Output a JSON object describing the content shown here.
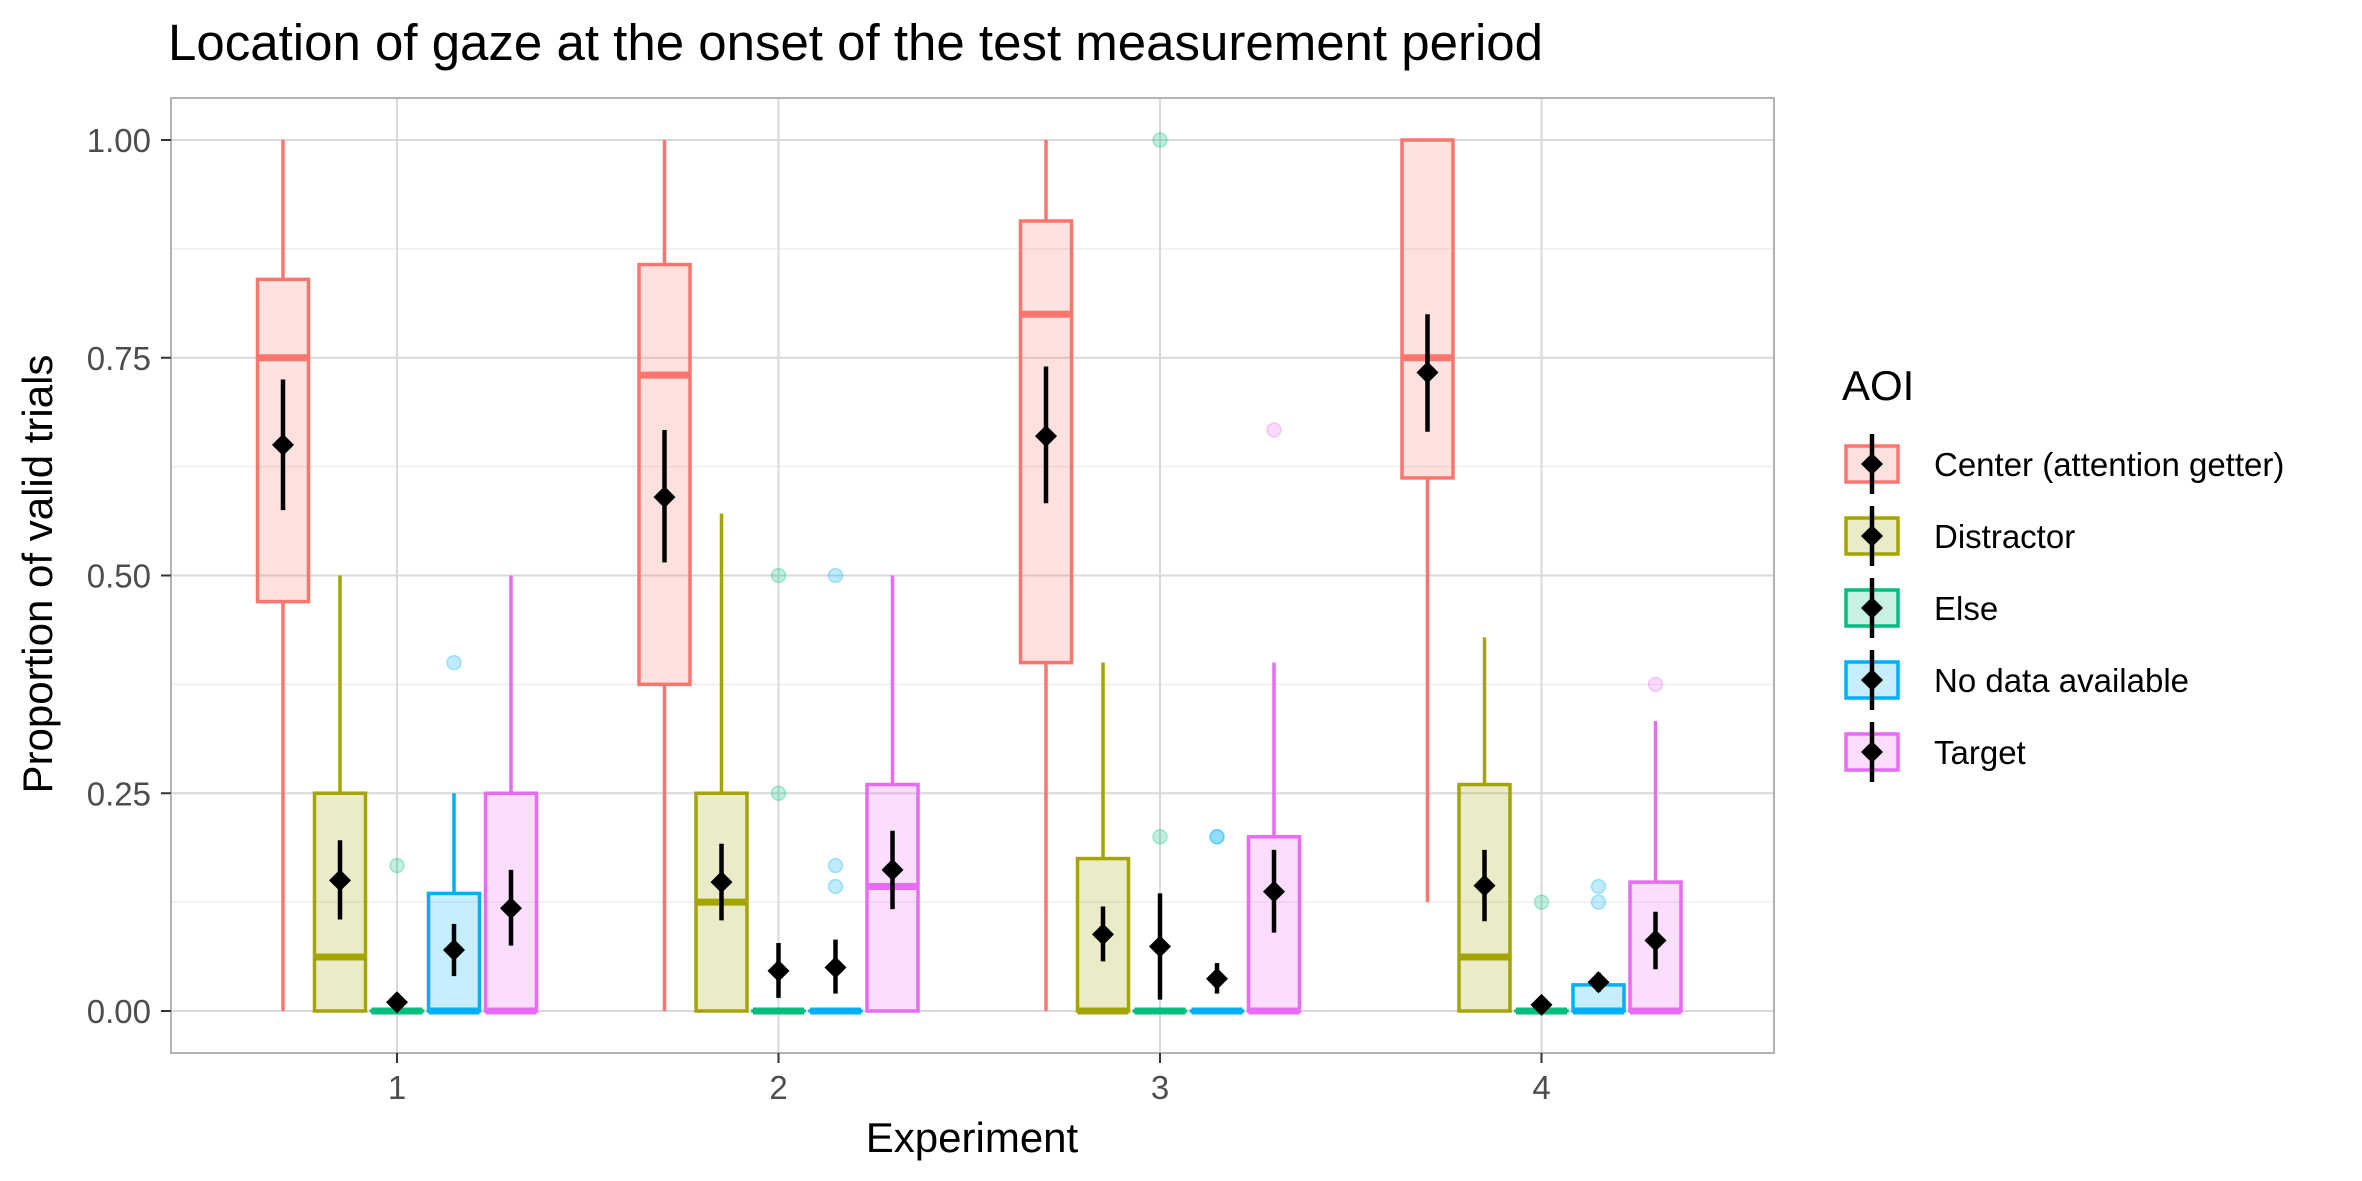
{
  "chart_data": {
    "type": "box",
    "title": "Location of gaze at the onset of the test measurement period",
    "xlabel": "Experiment",
    "ylabel": "Proportion of valid trials",
    "categories": [
      "1",
      "2",
      "3",
      "4"
    ],
    "y_ticks": [
      "0.00",
      "0.25",
      "0.50",
      "0.75",
      "1.00"
    ],
    "ylim": [
      -0.045,
      1.045
    ],
    "grid": true,
    "legend": {
      "title": "AOI",
      "position": "right"
    },
    "series": [
      {
        "name": "Center (attention getter)",
        "color": "#F8766D",
        "boxes": [
          {
            "whisker_low": 0.0,
            "q1": 0.47,
            "median": 0.75,
            "q3": 0.84,
            "whisker_high": 1.0,
            "mean": 0.65,
            "ci_low": 0.575,
            "ci_high": 0.725,
            "outliers": []
          },
          {
            "whisker_low": 0.0,
            "q1": 0.375,
            "median": 0.73,
            "q3": 0.857,
            "whisker_high": 1.0,
            "mean": 0.59,
            "ci_low": 0.515,
            "ci_high": 0.667,
            "outliers": []
          },
          {
            "whisker_low": 0.0,
            "q1": 0.4,
            "median": 0.8,
            "q3": 0.907,
            "whisker_high": 1.0,
            "mean": 0.66,
            "ci_low": 0.583,
            "ci_high": 0.74,
            "outliers": []
          },
          {
            "whisker_low": 0.125,
            "q1": 0.612,
            "median": 0.75,
            "q3": 1.0,
            "whisker_high": 1.0,
            "mean": 0.733,
            "ci_low": 0.665,
            "ci_high": 0.8,
            "outliers": []
          }
        ]
      },
      {
        "name": "Distractor",
        "color": "#A3A500",
        "boxes": [
          {
            "whisker_low": 0.0,
            "q1": 0.0,
            "median": 0.062,
            "q3": 0.25,
            "whisker_high": 0.5,
            "mean": 0.15,
            "ci_low": 0.105,
            "ci_high": 0.196,
            "outliers": []
          },
          {
            "whisker_low": 0.0,
            "q1": 0.0,
            "median": 0.125,
            "q3": 0.25,
            "whisker_high": 0.571,
            "mean": 0.148,
            "ci_low": 0.104,
            "ci_high": 0.192,
            "outliers": []
          },
          {
            "whisker_low": 0.0,
            "q1": 0.0,
            "median": 0.0,
            "q3": 0.175,
            "whisker_high": 0.4,
            "mean": 0.088,
            "ci_low": 0.057,
            "ci_high": 0.12,
            "outliers": []
          },
          {
            "whisker_low": 0.0,
            "q1": 0.0,
            "median": 0.062,
            "q3": 0.26,
            "whisker_high": 0.429,
            "mean": 0.144,
            "ci_low": 0.103,
            "ci_high": 0.185,
            "outliers": []
          }
        ]
      },
      {
        "name": "Else",
        "color": "#00BF7D",
        "boxes": [
          {
            "whisker_low": 0.0,
            "q1": 0.0,
            "median": 0.0,
            "q3": 0.0,
            "whisker_high": 0.0,
            "mean": 0.01,
            "ci_low": 0.003,
            "ci_high": 0.018,
            "outliers": [
              0.167
            ]
          },
          {
            "whisker_low": 0.0,
            "q1": 0.0,
            "median": 0.0,
            "q3": 0.0,
            "whisker_high": 0.0,
            "mean": 0.046,
            "ci_low": 0.015,
            "ci_high": 0.078,
            "outliers": [
              0.5,
              0.25
            ]
          },
          {
            "whisker_low": 0.0,
            "q1": 0.0,
            "median": 0.0,
            "q3": 0.0,
            "whisker_high": 0.0,
            "mean": 0.074,
            "ci_low": 0.013,
            "ci_high": 0.135,
            "outliers": [
              1.0,
              0.2
            ]
          },
          {
            "whisker_low": 0.0,
            "q1": 0.0,
            "median": 0.0,
            "q3": 0.0,
            "whisker_high": 0.0,
            "mean": 0.007,
            "ci_low": 0.0,
            "ci_high": 0.014,
            "outliers": [
              0.125
            ]
          }
        ]
      },
      {
        "name": "No data available",
        "color": "#00B0F6",
        "boxes": [
          {
            "whisker_low": 0.0,
            "q1": 0.0,
            "median": 0.0,
            "q3": 0.135,
            "whisker_high": 0.25,
            "mean": 0.07,
            "ci_low": 0.04,
            "ci_high": 0.1,
            "outliers": [
              0.4
            ]
          },
          {
            "whisker_low": 0.0,
            "q1": 0.0,
            "median": 0.0,
            "q3": 0.0,
            "whisker_high": 0.0,
            "mean": 0.05,
            "ci_low": 0.02,
            "ci_high": 0.082,
            "outliers": [
              0.5,
              0.167,
              0.143
            ]
          },
          {
            "whisker_low": 0.0,
            "q1": 0.0,
            "median": 0.0,
            "q3": 0.0,
            "whisker_high": 0.0,
            "mean": 0.037,
            "ci_low": 0.02,
            "ci_high": 0.055,
            "outliers": [
              0.2,
              0.2
            ]
          },
          {
            "whisker_low": 0.0,
            "q1": 0.0,
            "median": 0.0,
            "q3": 0.03,
            "whisker_high": 0.03,
            "mean": 0.033,
            "ci_low": 0.022,
            "ci_high": 0.044,
            "outliers": [
              0.143,
              0.125
            ]
          }
        ]
      },
      {
        "name": "Target",
        "color": "#E76BF3",
        "boxes": [
          {
            "whisker_low": 0.0,
            "q1": 0.0,
            "median": 0.0,
            "q3": 0.25,
            "whisker_high": 0.5,
            "mean": 0.118,
            "ci_low": 0.075,
            "ci_high": 0.162,
            "outliers": []
          },
          {
            "whisker_low": 0.0,
            "q1": 0.0,
            "median": 0.143,
            "q3": 0.26,
            "whisker_high": 0.5,
            "mean": 0.162,
            "ci_low": 0.117,
            "ci_high": 0.207,
            "outliers": []
          },
          {
            "whisker_low": 0.0,
            "q1": 0.0,
            "median": 0.0,
            "q3": 0.2,
            "whisker_high": 0.4,
            "mean": 0.137,
            "ci_low": 0.09,
            "ci_high": 0.185,
            "outliers": [
              0.667
            ]
          },
          {
            "whisker_low": 0.0,
            "q1": 0.0,
            "median": 0.0,
            "q3": 0.148,
            "whisker_high": 0.333,
            "mean": 0.081,
            "ci_low": 0.048,
            "ci_high": 0.114,
            "outliers": [
              0.375
            ]
          }
        ]
      }
    ]
  }
}
